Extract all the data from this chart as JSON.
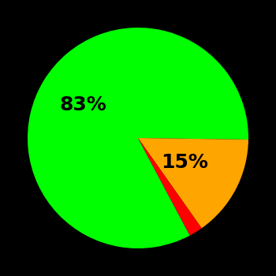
{
  "slices": [
    83,
    15,
    2
  ],
  "colors": [
    "#00ff00",
    "#ffa500",
    "#ff0000"
  ],
  "labels": [
    "83%",
    "15%",
    ""
  ],
  "label_radii": [
    0.58,
    0.48,
    0
  ],
  "background_color": "#000000",
  "label_fontsize": 18,
  "label_fontweight": "bold",
  "startangle": -62,
  "figsize": [
    3.5,
    3.5
  ],
  "dpi": 100
}
